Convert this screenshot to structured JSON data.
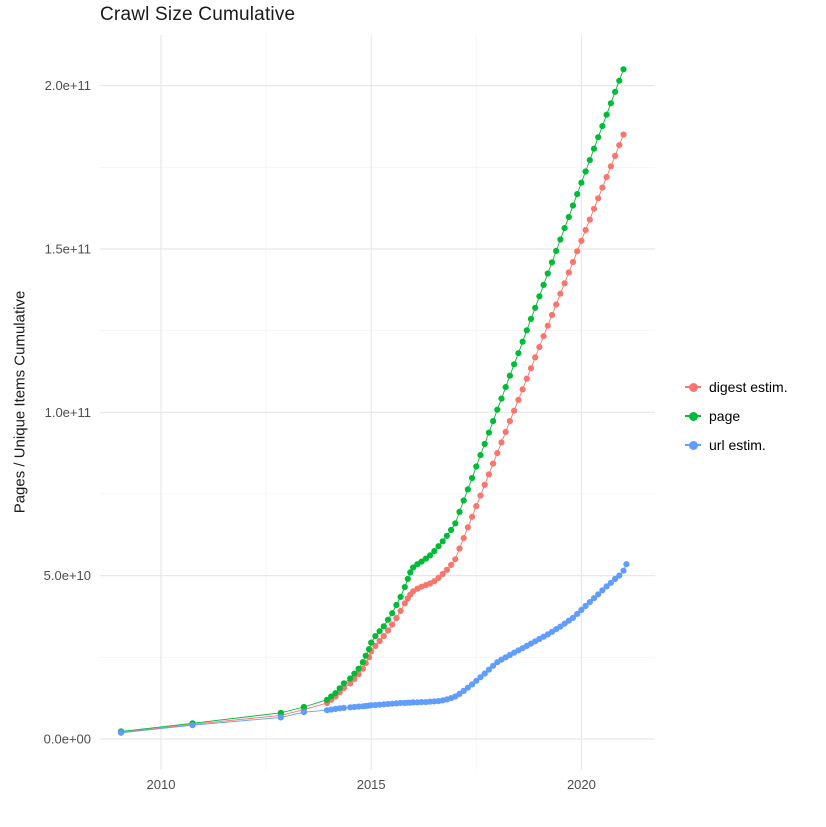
{
  "title": "Crawl Size Cumulative",
  "colors": {
    "background": "#ffffff",
    "grid_major": "#e8e8e8",
    "grid_minor": "#f4f4f4",
    "axis_text": "#4d4d4d",
    "title_text": "#1a1a1a",
    "digest": "#F8766D",
    "page": "#00BA38",
    "url": "#619CFF"
  },
  "legend": {
    "position": "right",
    "items": [
      {
        "label": "digest estim."
      },
      {
        "label": "page"
      },
      {
        "label": "url estim."
      }
    ]
  },
  "chart_data": {
    "type": "scatter",
    "title": "Crawl Size Cumulative",
    "xlabel": "",
    "ylabel": "Pages / Unique Items Cumulative",
    "grid": true,
    "legend_position": "right",
    "y_unit_multiplier": 1000000000.0,
    "xlim": [
      2008.55,
      2021.75
    ],
    "ylim_e9": [
      -9.5,
      215.5
    ],
    "x_ticks": [
      {
        "value": 2010,
        "label": "2010"
      },
      {
        "value": 2015,
        "label": "2015"
      },
      {
        "value": 2020,
        "label": "2020"
      }
    ],
    "x_minor_ticks": [
      2012.5,
      2017.5
    ],
    "y_ticks": [
      {
        "value": 0,
        "label": "0.0e+00"
      },
      {
        "value": 50,
        "label": "5.0e+10"
      },
      {
        "value": 100,
        "label": "1.0e+11"
      },
      {
        "value": 150,
        "label": "1.5e+11"
      },
      {
        "value": 200,
        "label": "2.0e+11"
      }
    ],
    "y_minor_ticks": [
      25,
      75,
      125,
      175
    ],
    "series": [
      {
        "name": "digest estim.",
        "color": "#F8766D",
        "points": [
          [
            2009.05,
            2.0
          ],
          [
            2010.75,
            4.5
          ],
          [
            2012.85,
            7.2
          ],
          [
            2013.4,
            9.0
          ],
          [
            2013.95,
            11.0
          ],
          [
            2014.05,
            12.0
          ],
          [
            2014.15,
            13.0
          ],
          [
            2014.25,
            14.3
          ],
          [
            2014.35,
            15.6
          ],
          [
            2014.5,
            17.0
          ],
          [
            2014.6,
            18.4
          ],
          [
            2014.7,
            19.8
          ],
          [
            2014.8,
            21.5
          ],
          [
            2014.87,
            23.2
          ],
          [
            2014.95,
            25.0
          ],
          [
            2015.0,
            26.8
          ],
          [
            2015.1,
            28.5
          ],
          [
            2015.2,
            30.0
          ],
          [
            2015.3,
            31.5
          ],
          [
            2015.4,
            33.2
          ],
          [
            2015.5,
            35.0
          ],
          [
            2015.6,
            37.0
          ],
          [
            2015.7,
            39.2
          ],
          [
            2015.8,
            41.5
          ],
          [
            2015.87,
            43.0
          ],
          [
            2015.93,
            44.2
          ],
          [
            2016.0,
            45.2
          ],
          [
            2016.1,
            46.0
          ],
          [
            2016.2,
            46.6
          ],
          [
            2016.3,
            47.1
          ],
          [
            2016.4,
            47.6
          ],
          [
            2016.5,
            48.3
          ],
          [
            2016.6,
            49.3
          ],
          [
            2016.7,
            50.5
          ],
          [
            2016.8,
            51.8
          ],
          [
            2016.9,
            53.3
          ],
          [
            2017.0,
            55.0
          ],
          [
            2017.1,
            58.3
          ],
          [
            2017.2,
            61.5
          ],
          [
            2017.3,
            64.8
          ],
          [
            2017.4,
            68.0
          ],
          [
            2017.5,
            71.3
          ],
          [
            2017.6,
            74.5
          ],
          [
            2017.7,
            77.8
          ],
          [
            2017.8,
            81.0
          ],
          [
            2017.9,
            84.3
          ],
          [
            2018.0,
            87.5
          ],
          [
            2018.1,
            90.8
          ],
          [
            2018.2,
            94.0
          ],
          [
            2018.3,
            97.3
          ],
          [
            2018.4,
            100.5
          ],
          [
            2018.5,
            103.8
          ],
          [
            2018.6,
            107.0
          ],
          [
            2018.7,
            110.3
          ],
          [
            2018.8,
            113.5
          ],
          [
            2018.9,
            116.8
          ],
          [
            2019.0,
            120.0
          ],
          [
            2019.1,
            123.3
          ],
          [
            2019.2,
            126.5
          ],
          [
            2019.3,
            129.8
          ],
          [
            2019.4,
            133.0
          ],
          [
            2019.5,
            136.3
          ],
          [
            2019.6,
            139.5
          ],
          [
            2019.7,
            142.8
          ],
          [
            2019.8,
            146.0
          ],
          [
            2019.9,
            149.3
          ],
          [
            2020.0,
            152.5
          ],
          [
            2020.1,
            155.8
          ],
          [
            2020.2,
            159.0
          ],
          [
            2020.3,
            162.3
          ],
          [
            2020.4,
            165.5
          ],
          [
            2020.5,
            168.8
          ],
          [
            2020.6,
            172.0
          ],
          [
            2020.7,
            175.3
          ],
          [
            2020.8,
            178.5
          ],
          [
            2020.9,
            181.8
          ],
          [
            2021.0,
            185.0
          ]
        ]
      },
      {
        "name": "page",
        "color": "#00BA38",
        "points": [
          [
            2009.05,
            2.3
          ],
          [
            2010.75,
            4.8
          ],
          [
            2012.85,
            8.0
          ],
          [
            2013.4,
            9.8
          ],
          [
            2013.95,
            12.0
          ],
          [
            2014.05,
            13.0
          ],
          [
            2014.15,
            14.0
          ],
          [
            2014.25,
            15.5
          ],
          [
            2014.35,
            17.0
          ],
          [
            2014.5,
            18.5
          ],
          [
            2014.6,
            20.0
          ],
          [
            2014.7,
            21.5
          ],
          [
            2014.8,
            23.5
          ],
          [
            2014.87,
            25.5
          ],
          [
            2014.95,
            27.5
          ],
          [
            2015.0,
            29.5
          ],
          [
            2015.1,
            31.5
          ],
          [
            2015.2,
            33.0
          ],
          [
            2015.3,
            34.5
          ],
          [
            2015.4,
            36.5
          ],
          [
            2015.5,
            38.5
          ],
          [
            2015.6,
            41.0
          ],
          [
            2015.7,
            43.5
          ],
          [
            2015.8,
            46.5
          ],
          [
            2015.87,
            49.0
          ],
          [
            2015.93,
            51.0
          ],
          [
            2016.0,
            52.5
          ],
          [
            2016.1,
            53.5
          ],
          [
            2016.2,
            54.3
          ],
          [
            2016.3,
            55.2
          ],
          [
            2016.4,
            56.2
          ],
          [
            2016.5,
            57.5
          ],
          [
            2016.6,
            59.0
          ],
          [
            2016.7,
            60.5
          ],
          [
            2016.8,
            62.2
          ],
          [
            2016.9,
            64.0
          ],
          [
            2017.0,
            66.0
          ],
          [
            2017.1,
            69.5
          ],
          [
            2017.2,
            73.0
          ],
          [
            2017.3,
            76.4
          ],
          [
            2017.4,
            79.9
          ],
          [
            2017.5,
            83.4
          ],
          [
            2017.6,
            86.9
          ],
          [
            2017.7,
            90.3
          ],
          [
            2017.8,
            93.8
          ],
          [
            2017.9,
            97.3
          ],
          [
            2018.0,
            100.8
          ],
          [
            2018.1,
            104.2
          ],
          [
            2018.2,
            107.7
          ],
          [
            2018.3,
            111.2
          ],
          [
            2018.4,
            114.7
          ],
          [
            2018.5,
            118.1
          ],
          [
            2018.6,
            121.6
          ],
          [
            2018.7,
            125.1
          ],
          [
            2018.8,
            128.6
          ],
          [
            2018.9,
            132.0
          ],
          [
            2019.0,
            135.5
          ],
          [
            2019.1,
            139.0
          ],
          [
            2019.2,
            142.5
          ],
          [
            2019.3,
            145.9
          ],
          [
            2019.4,
            149.4
          ],
          [
            2019.5,
            152.9
          ],
          [
            2019.6,
            156.4
          ],
          [
            2019.7,
            159.8
          ],
          [
            2019.8,
            163.3
          ],
          [
            2019.9,
            166.8
          ],
          [
            2020.0,
            170.3
          ],
          [
            2020.1,
            173.7
          ],
          [
            2020.2,
            177.2
          ],
          [
            2020.3,
            180.7
          ],
          [
            2020.4,
            184.2
          ],
          [
            2020.5,
            187.6
          ],
          [
            2020.6,
            191.1
          ],
          [
            2020.7,
            194.6
          ],
          [
            2020.8,
            198.1
          ],
          [
            2020.9,
            201.5
          ],
          [
            2021.0,
            205.0
          ]
        ]
      },
      {
        "name": "url estim.",
        "color": "#619CFF",
        "points": [
          [
            2009.05,
            1.9
          ],
          [
            2010.75,
            4.2
          ],
          [
            2012.85,
            6.6
          ],
          [
            2013.4,
            8.2
          ],
          [
            2013.95,
            8.8
          ],
          [
            2014.05,
            9.0
          ],
          [
            2014.15,
            9.2
          ],
          [
            2014.25,
            9.4
          ],
          [
            2014.35,
            9.5
          ],
          [
            2014.5,
            9.7
          ],
          [
            2014.6,
            9.8
          ],
          [
            2014.7,
            9.9
          ],
          [
            2014.8,
            10.0
          ],
          [
            2014.87,
            10.1
          ],
          [
            2014.95,
            10.2
          ],
          [
            2015.0,
            10.3
          ],
          [
            2015.1,
            10.4
          ],
          [
            2015.2,
            10.5
          ],
          [
            2015.3,
            10.6
          ],
          [
            2015.4,
            10.7
          ],
          [
            2015.5,
            10.8
          ],
          [
            2015.6,
            10.9
          ],
          [
            2015.7,
            11.0
          ],
          [
            2015.8,
            11.0
          ],
          [
            2015.87,
            11.1
          ],
          [
            2015.93,
            11.1
          ],
          [
            2016.0,
            11.2
          ],
          [
            2016.1,
            11.2
          ],
          [
            2016.2,
            11.3
          ],
          [
            2016.3,
            11.3
          ],
          [
            2016.4,
            11.4
          ],
          [
            2016.5,
            11.5
          ],
          [
            2016.6,
            11.6
          ],
          [
            2016.7,
            11.8
          ],
          [
            2016.8,
            12.1
          ],
          [
            2016.9,
            12.5
          ],
          [
            2017.0,
            13.0
          ],
          [
            2017.1,
            13.8
          ],
          [
            2017.2,
            14.7
          ],
          [
            2017.3,
            15.7
          ],
          [
            2017.4,
            16.7
          ],
          [
            2017.5,
            17.8
          ],
          [
            2017.6,
            18.9
          ],
          [
            2017.7,
            20.0
          ],
          [
            2017.8,
            21.2
          ],
          [
            2017.9,
            22.4
          ],
          [
            2018.0,
            23.5
          ],
          [
            2018.1,
            24.3
          ],
          [
            2018.2,
            25.0
          ],
          [
            2018.3,
            25.7
          ],
          [
            2018.4,
            26.4
          ],
          [
            2018.5,
            27.1
          ],
          [
            2018.6,
            27.8
          ],
          [
            2018.7,
            28.5
          ],
          [
            2018.8,
            29.2
          ],
          [
            2018.9,
            29.9
          ],
          [
            2019.0,
            30.6
          ],
          [
            2019.1,
            31.3
          ],
          [
            2019.2,
            32.0
          ],
          [
            2019.3,
            32.8
          ],
          [
            2019.4,
            33.6
          ],
          [
            2019.5,
            34.4
          ],
          [
            2019.6,
            35.3
          ],
          [
            2019.7,
            36.2
          ],
          [
            2019.8,
            37.1
          ],
          [
            2019.9,
            38.3
          ],
          [
            2020.0,
            39.5
          ],
          [
            2020.1,
            40.7
          ],
          [
            2020.2,
            41.9
          ],
          [
            2020.3,
            43.1
          ],
          [
            2020.4,
            44.3
          ],
          [
            2020.5,
            45.5
          ],
          [
            2020.6,
            46.7
          ],
          [
            2020.7,
            47.8
          ],
          [
            2020.8,
            49.0
          ],
          [
            2020.9,
            50.0
          ],
          [
            2021.0,
            51.5
          ],
          [
            2021.07,
            53.5
          ]
        ]
      }
    ]
  }
}
